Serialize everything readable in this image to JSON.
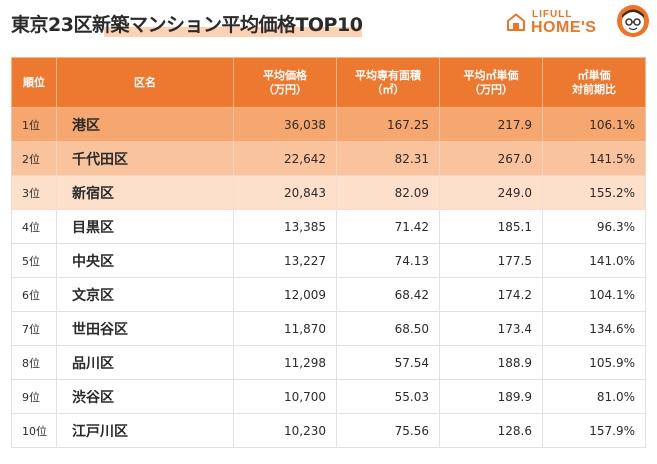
{
  "title": "東京23区新築マンション平均価格TOP10",
  "logo": {
    "line1": "LIFULL",
    "line2": "HOME'S",
    "house_icon": "house-icon",
    "mascot_icon": "mascot-icon",
    "brand_color": "#ee7427"
  },
  "table": {
    "header_color": "#ed7931",
    "headers": [
      {
        "line1": "順位",
        "line2": ""
      },
      {
        "line1": "区名",
        "line2": ""
      },
      {
        "line1": "平均価格",
        "line2": "（万円）"
      },
      {
        "line1": "平均専有面積",
        "line2": "（㎡）"
      },
      {
        "line1": "平均㎡単価",
        "line2": "（万円）"
      },
      {
        "line1": "㎡単価",
        "line2": "対前期比"
      }
    ],
    "rows": [
      {
        "rank": "1位",
        "ward": "港区",
        "price": "36,038",
        "area": "167.25",
        "unit_price": "217.9",
        "change": "106.1%"
      },
      {
        "rank": "2位",
        "ward": "千代田区",
        "price": "22,642",
        "area": "82.31",
        "unit_price": "267.0",
        "change": "141.5%"
      },
      {
        "rank": "3位",
        "ward": "新宿区",
        "price": "20,843",
        "area": "82.09",
        "unit_price": "249.0",
        "change": "155.2%"
      },
      {
        "rank": "4位",
        "ward": "目黒区",
        "price": "13,385",
        "area": "71.42",
        "unit_price": "185.1",
        "change": "96.3%"
      },
      {
        "rank": "5位",
        "ward": "中央区",
        "price": "13,227",
        "area": "74.13",
        "unit_price": "177.5",
        "change": "141.0%"
      },
      {
        "rank": "6位",
        "ward": "文京区",
        "price": "12,009",
        "area": "68.42",
        "unit_price": "174.2",
        "change": "104.1%"
      },
      {
        "rank": "7位",
        "ward": "世田谷区",
        "price": "11,870",
        "area": "68.50",
        "unit_price": "173.4",
        "change": "134.6%"
      },
      {
        "rank": "8位",
        "ward": "品川区",
        "price": "11,298",
        "area": "57.54",
        "unit_price": "188.9",
        "change": "105.9%"
      },
      {
        "rank": "9位",
        "ward": "渋谷区",
        "price": "10,700",
        "area": "55.03",
        "unit_price": "189.9",
        "change": "81.0%"
      },
      {
        "rank": "10位",
        "ward": "江戸川区",
        "price": "10,230",
        "area": "75.56",
        "unit_price": "128.6",
        "change": "157.9%"
      }
    ]
  }
}
